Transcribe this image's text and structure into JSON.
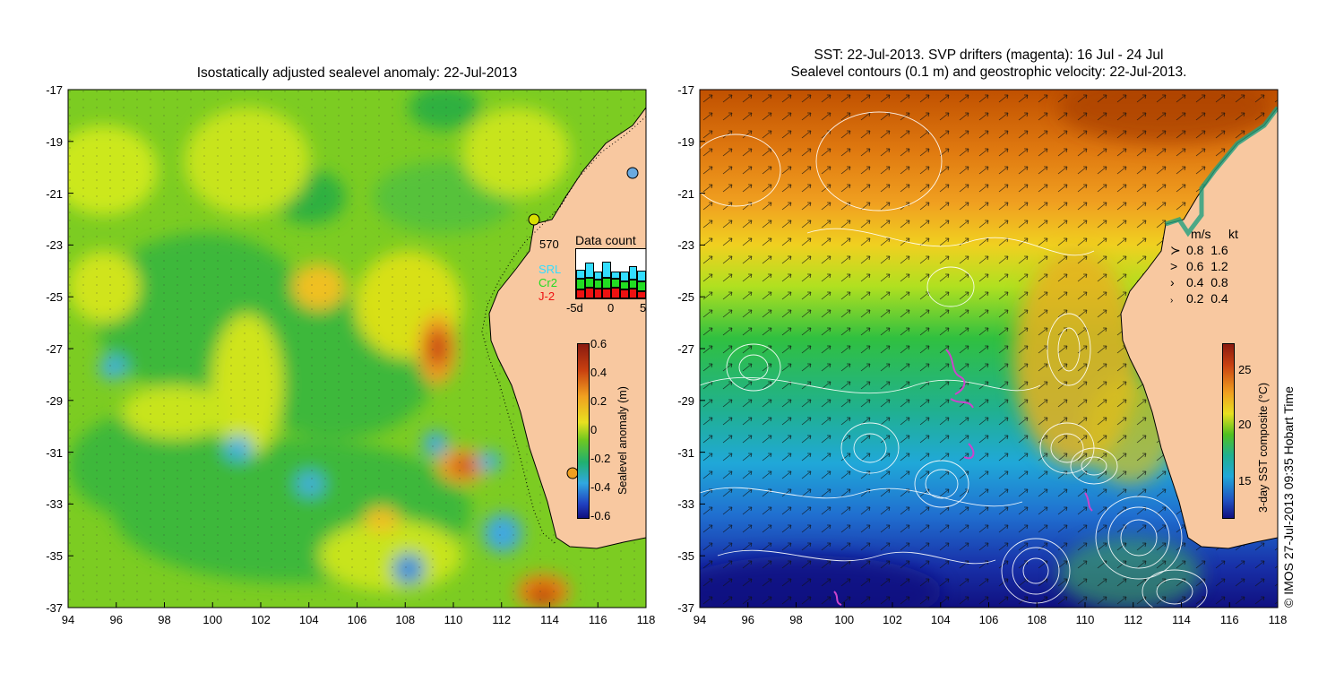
{
  "left_panel": {
    "title": "Isostatically adjusted sealevel anomaly: 22-Jul-2013",
    "colorbar": {
      "label": "Sealevel anomaly (m)",
      "ticks": [
        "0.6",
        "0.4",
        "0.2",
        "0",
        "-0.2",
        "-0.4",
        "-0.6"
      ]
    },
    "data_count": {
      "title": "Data count",
      "max_label": "570",
      "series": [
        {
          "name": "SRL",
          "color": "#33ddff"
        },
        {
          "name": "Cr2",
          "color": "#22dd22"
        },
        {
          "name": "J-2",
          "color": "#ee1111"
        }
      ],
      "x_ticks": [
        "-5d",
        "0",
        "5"
      ],
      "bars": [
        {
          "srl": 0.18,
          "cr2": 0.22,
          "j2": 0.18
        },
        {
          "srl": 0.3,
          "cr2": 0.2,
          "j2": 0.22
        },
        {
          "srl": 0.16,
          "cr2": 0.18,
          "j2": 0.2
        },
        {
          "srl": 0.32,
          "cr2": 0.22,
          "j2": 0.2
        },
        {
          "srl": 0.14,
          "cr2": 0.18,
          "j2": 0.22
        },
        {
          "srl": 0.2,
          "cr2": 0.16,
          "j2": 0.18
        },
        {
          "srl": 0.28,
          "cr2": 0.18,
          "j2": 0.2
        },
        {
          "srl": 0.22,
          "cr2": 0.2,
          "j2": 0.14
        }
      ]
    }
  },
  "right_panel": {
    "title_line1": "SST: 22-Jul-2013. SVP drifters (magenta): 16 Jul - 24 Jul",
    "title_line2": "Sealevel contours (0.1 m) and geostrophic velocity: 22-Jul-2013.",
    "colorbar": {
      "label": "3-day SST composite (°C)",
      "ticks": [
        "25",
        "20",
        "15"
      ]
    },
    "velocity_legend": {
      "header_ms": "m/s",
      "header_kt": "kt",
      "rows": [
        {
          "ms": "0.8",
          "kt": "1.6"
        },
        {
          "ms": "0.6",
          "kt": "1.2"
        },
        {
          "ms": "0.4",
          "kt": "0.8"
        },
        {
          "ms": "0.2",
          "kt": "0.4"
        }
      ]
    },
    "credit": "© IMOS 27-Jul-2013 09:35 Hobart Time"
  },
  "axes": {
    "lat_ticks": [
      "-17",
      "-19",
      "-21",
      "-23",
      "-25",
      "-27",
      "-29",
      "-31",
      "-33",
      "-35",
      "-37"
    ],
    "lon_ticks": [
      "94",
      "96",
      "98",
      "100",
      "102",
      "104",
      "106",
      "108",
      "110",
      "112",
      "114",
      "116",
      "118"
    ]
  },
  "colors": {
    "land": "#f8c8a0",
    "coastline": "#000000",
    "contour": "#ffffff",
    "drifter": "#cc44cc"
  }
}
